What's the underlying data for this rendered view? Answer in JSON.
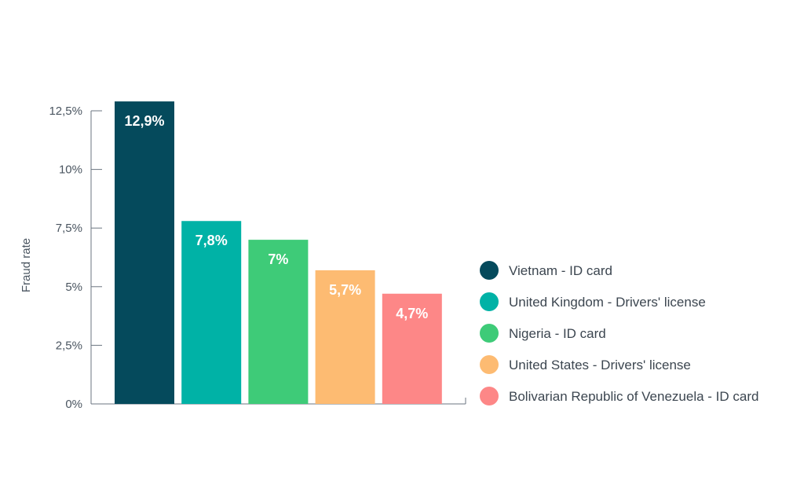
{
  "chart_data": {
    "type": "bar",
    "ylabel": "Fraud rate",
    "ylim": [
      0,
      12.5
    ],
    "yticks": [
      {
        "value": 0,
        "label": "0%"
      },
      {
        "value": 2.5,
        "label": "2,5%"
      },
      {
        "value": 5,
        "label": "5%"
      },
      {
        "value": 7.5,
        "label": "7,5%"
      },
      {
        "value": 10,
        "label": "10%"
      },
      {
        "value": 12.5,
        "label": "12,5%"
      }
    ],
    "categories": [
      "Vietnam - ID card",
      "United Kingdom - Drivers' license",
      "Nigeria - ID card",
      "United States - Drivers' license",
      "Bolivarian Republic of Venezuela - ID card"
    ],
    "values": [
      12.9,
      7.8,
      7,
      5.7,
      4.7
    ],
    "data_labels": [
      "12,9%",
      "7,8%",
      "7%",
      "5,7%",
      "4,7%"
    ],
    "colors": [
      "#054a5c",
      "#00b2a6",
      "#3ecb78",
      "#fdbb72",
      "#fd8787"
    ],
    "grid": false,
    "legend_position": "right"
  }
}
